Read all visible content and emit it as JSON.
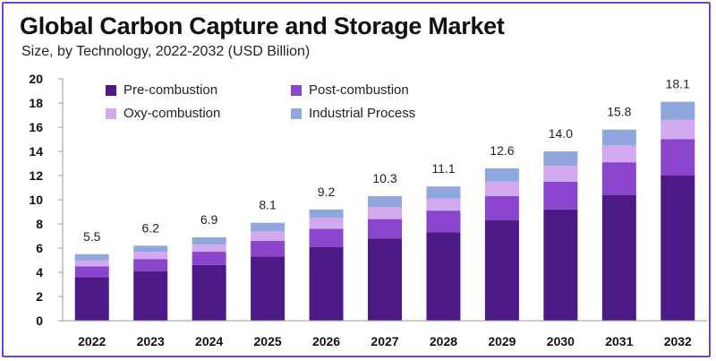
{
  "title": "Global Carbon Capture and Storage Market",
  "subtitle": "Size, by Technology, 2022-2032 (USD Billion)",
  "chart_data": {
    "type": "bar",
    "stacked": true,
    "categories": [
      "2022",
      "2023",
      "2024",
      "2025",
      "2026",
      "2027",
      "2028",
      "2029",
      "2030",
      "2031",
      "2032"
    ],
    "series": [
      {
        "name": "Pre-combustion",
        "color": "#4b1a86",
        "values": [
          3.6,
          4.1,
          4.6,
          5.3,
          6.1,
          6.8,
          7.3,
          8.3,
          9.2,
          10.4,
          12.0
        ]
      },
      {
        "name": "Post-combustion",
        "color": "#8a45cc",
        "values": [
          0.9,
          1.0,
          1.1,
          1.3,
          1.5,
          1.6,
          1.8,
          2.0,
          2.3,
          2.7,
          3.0
        ]
      },
      {
        "name": "Oxy-combustion",
        "color": "#d2a8ee",
        "values": [
          0.5,
          0.6,
          0.6,
          0.8,
          0.9,
          1.0,
          1.0,
          1.2,
          1.3,
          1.4,
          1.6
        ]
      },
      {
        "name": "Industrial Process",
        "color": "#8fa7dc",
        "values": [
          0.5,
          0.5,
          0.6,
          0.7,
          0.7,
          0.9,
          1.0,
          1.1,
          1.2,
          1.3,
          1.5
        ]
      }
    ],
    "totals": [
      "5.5",
      "6.2",
      "6.9",
      "8.1",
      "9.2",
      "10.3",
      "11.1",
      "12.6",
      "14.0",
      "15.8",
      "18.1"
    ],
    "ylim": [
      0,
      20
    ],
    "yticks": [
      0,
      2,
      4,
      6,
      8,
      10,
      12,
      14,
      16,
      18,
      20
    ],
    "grid": false,
    "legend_position": "top-left"
  }
}
